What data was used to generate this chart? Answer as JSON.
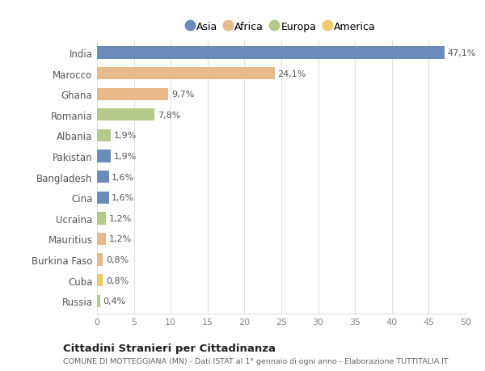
{
  "countries": [
    "India",
    "Marocco",
    "Ghana",
    "Romania",
    "Albania",
    "Pakistan",
    "Bangladesh",
    "Cina",
    "Ucraina",
    "Mauritius",
    "Burkina Faso",
    "Cuba",
    "Russia"
  ],
  "values": [
    47.1,
    24.1,
    9.7,
    7.8,
    1.9,
    1.9,
    1.6,
    1.6,
    1.2,
    1.2,
    0.8,
    0.8,
    0.4
  ],
  "labels": [
    "47,1%",
    "24,1%",
    "9,7%",
    "7,8%",
    "1,9%",
    "1,9%",
    "1,6%",
    "1,6%",
    "1,2%",
    "1,2%",
    "0,8%",
    "0,8%",
    "0,4%"
  ],
  "continents": [
    "Asia",
    "Africa",
    "Africa",
    "Europa",
    "Europa",
    "Asia",
    "Asia",
    "Asia",
    "Europa",
    "Africa",
    "Africa",
    "America",
    "Europa"
  ],
  "continent_colors": {
    "Asia": "#6b8cba",
    "Africa": "#e8b98a",
    "Europa": "#b5c98a",
    "America": "#f0c96b"
  },
  "legend_order": [
    "Asia",
    "Africa",
    "Europa",
    "America"
  ],
  "title": "Cittadini Stranieri per Cittadinanza",
  "subtitle": "COMUNE DI MOTTEGGIANA (MN) - Dati ISTAT al 1° gennaio di ogni anno - Elaborazione TUTTITALIA.IT",
  "xlim": [
    0,
    50
  ],
  "xticks": [
    0,
    5,
    10,
    15,
    20,
    25,
    30,
    35,
    40,
    45,
    50
  ],
  "bg_color": "#ffffff",
  "grid_color": "#e0e0e0",
  "bar_height": 0.6
}
